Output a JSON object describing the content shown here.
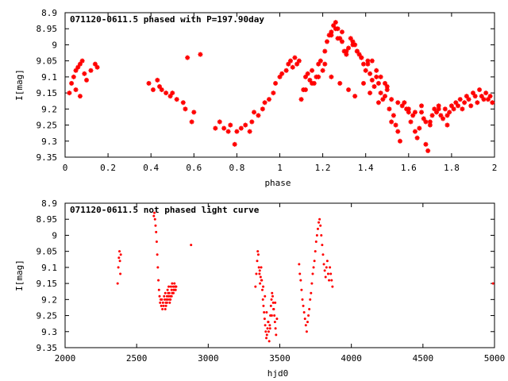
{
  "chart_data": [
    {
      "type": "scatter",
      "title": "071120-0611.5 phased with P=197.90day",
      "xlabel": "phase",
      "ylabel": "I[mag]",
      "xlim": [
        0,
        2
      ],
      "ylim": [
        9.35,
        8.9
      ],
      "y_inverted": true,
      "x_ticks": [
        "0",
        "0.2",
        "0.4",
        "0.6",
        "0.8",
        "1",
        "1.2",
        "1.4",
        "1.6",
        "1.8",
        "2"
      ],
      "y_ticks": [
        "8.9",
        "8.95",
        "9",
        "9.05",
        "9.1",
        "9.15",
        "9.2",
        "9.25",
        "9.3",
        "9.35"
      ],
      "grid": false,
      "marker_color": "#ff0000",
      "series": [
        {
          "x": [
            0.02,
            0.03,
            0.04,
            0.05,
            0.05,
            0.06,
            0.07,
            0.07,
            0.08,
            0.09,
            0.1,
            0.12,
            0.14,
            0.15,
            0.39,
            0.41,
            0.43,
            0.44,
            0.45,
            0.47,
            0.49,
            0.5,
            0.52,
            0.55,
            0.56,
            0.57,
            0.59,
            0.6,
            0.63,
            0.7,
            0.72,
            0.74,
            0.76,
            0.77,
            0.79,
            0.8,
            0.82,
            0.84,
            0.86,
            0.87,
            0.88,
            0.9,
            0.92,
            0.93,
            0.95,
            0.97,
            0.98,
            1.0,
            1.01,
            1.03,
            1.04,
            1.05,
            1.06,
            1.07,
            1.08,
            1.09,
            1.1,
            1.11,
            1.12,
            1.13,
            1.14,
            1.15,
            1.16,
            1.17,
            1.18,
            1.19,
            1.2,
            1.21,
            1.22,
            1.23,
            1.24,
            1.25,
            1.26,
            1.27,
            1.28,
            1.29,
            1.3,
            1.31,
            1.32,
            1.33,
            1.34,
            1.35,
            1.36,
            1.37,
            1.38,
            1.39,
            1.4,
            1.41,
            1.42,
            1.43,
            1.44,
            1.45,
            1.46,
            1.47,
            1.48,
            1.49,
            1.5,
            1.51,
            1.52,
            1.53,
            1.54,
            1.55,
            1.56,
            1.57,
            1.58,
            1.59,
            1.6,
            1.61,
            1.62,
            1.63,
            1.64,
            1.65,
            1.66,
            1.67,
            1.68,
            1.69,
            1.7,
            1.71,
            1.72,
            1.73,
            1.74,
            1.75,
            1.76,
            1.77,
            1.78,
            1.79,
            1.8,
            1.81,
            1.82,
            1.83,
            1.84,
            1.85,
            1.86,
            1.87,
            1.88,
            1.89,
            1.9,
            1.91,
            1.92,
            1.93,
            1.94,
            1.95,
            1.96,
            1.97,
            1.98,
            1.99,
            1.24,
            1.26,
            1.27,
            1.29,
            1.31,
            1.34,
            1.36,
            1.38,
            1.41,
            1.43,
            1.45,
            1.47,
            1.49,
            1.52,
            1.12,
            1.15,
            1.18,
            1.21,
            1.24,
            1.28,
            1.32,
            1.35,
            1.39,
            1.42,
            1.46,
            1.5,
            1.55,
            1.6,
            1.63,
            1.66,
            1.68,
            1.7,
            1.74,
            1.78
          ],
          "y": [
            9.15,
            9.12,
            9.1,
            9.08,
            9.14,
            9.07,
            9.06,
            9.16,
            9.05,
            9.09,
            9.11,
            9.08,
            9.06,
            9.07,
            9.12,
            9.14,
            9.11,
            9.13,
            9.14,
            9.15,
            9.16,
            9.15,
            9.17,
            9.18,
            9.2,
            9.04,
            9.24,
            9.21,
            9.03,
            9.26,
            9.24,
            9.26,
            9.27,
            9.25,
            9.31,
            9.27,
            9.26,
            9.25,
            9.27,
            9.24,
            9.21,
            9.22,
            9.2,
            9.18,
            9.17,
            9.15,
            9.12,
            9.1,
            9.09,
            9.08,
            9.06,
            9.05,
            9.07,
            9.04,
            9.06,
            9.05,
            9.17,
            9.14,
            9.1,
            9.09,
            9.11,
            9.08,
            9.12,
            9.1,
            9.06,
            9.05,
            9.08,
            9.02,
            8.99,
            8.97,
            8.96,
            8.94,
            8.93,
            8.95,
            8.98,
            8.99,
            9.02,
            9.03,
            9.01,
            8.98,
            8.99,
            9.0,
            9.02,
            9.03,
            9.04,
            9.06,
            9.08,
            9.05,
            9.09,
            9.11,
            9.13,
            9.1,
            9.12,
            9.15,
            9.17,
            9.16,
            9.14,
            9.2,
            9.24,
            9.22,
            9.25,
            9.27,
            9.3,
            9.19,
            9.18,
            9.2,
            9.21,
            9.24,
            9.22,
            9.27,
            9.29,
            9.26,
            9.21,
            9.23,
            9.31,
            9.33,
            9.24,
            9.22,
            9.2,
            9.21,
            9.19,
            9.22,
            9.23,
            9.2,
            9.25,
            9.21,
            9.19,
            9.2,
            9.18,
            9.19,
            9.17,
            9.2,
            9.18,
            9.16,
            9.17,
            9.19,
            9.15,
            9.16,
            9.18,
            9.14,
            9.16,
            9.17,
            9.15,
            9.17,
            9.16,
            9.18,
            8.97,
            8.95,
            8.98,
            8.96,
            9.02,
            9.0,
            9.02,
            9.04,
            9.06,
            9.05,
            9.08,
            9.1,
            9.12,
            9.17,
            9.14,
            9.12,
            9.1,
            9.06,
            9.1,
            9.12,
            9.14,
            9.16,
            9.12,
            9.15,
            9.18,
            9.13,
            9.18,
            9.2,
            9.21,
            9.19,
            9.24,
            9.25,
            9.2,
            9.22
          ]
        }
      ]
    },
    {
      "type": "scatter",
      "title": "071120-0611.5 not phased light curve",
      "xlabel": "hjd0",
      "ylabel": "I[mag]",
      "xlim": [
        2000,
        5000
      ],
      "ylim": [
        9.35,
        8.9
      ],
      "y_inverted": true,
      "x_ticks": [
        "2000",
        "2500",
        "3000",
        "3500",
        "4000",
        "4500",
        "5000"
      ],
      "y_ticks": [
        "8.9",
        "8.95",
        "9",
        "9.05",
        "9.1",
        "9.15",
        "9.2",
        "9.25",
        "9.3",
        "9.35"
      ],
      "grid": false,
      "marker_color": "#ff0000",
      "series": [
        {
          "x": [
            2367,
            2372,
            2376,
            2380,
            2383,
            2386,
            2389,
            2620,
            2624,
            2628,
            2632,
            2636,
            2640,
            2644,
            2648,
            2652,
            2656,
            2660,
            2664,
            2668,
            2672,
            2676,
            2680,
            2684,
            2688,
            2692,
            2696,
            2700,
            2704,
            2708,
            2712,
            2716,
            2720,
            2724,
            2728,
            2732,
            2736,
            2740,
            2744,
            2748,
            2752,
            2756,
            2760,
            2764,
            2768,
            2772,
            2776,
            2700,
            2712,
            2724,
            2736,
            2748,
            2760,
            2772,
            2705,
            2718,
            2731,
            2744,
            2757,
            2770,
            2880,
            3330,
            3336,
            3342,
            3346,
            3350,
            3354,
            3358,
            3362,
            3366,
            3370,
            3374,
            3378,
            3382,
            3386,
            3390,
            3394,
            3398,
            3402,
            3406,
            3410,
            3414,
            3418,
            3422,
            3426,
            3430,
            3434,
            3438,
            3442,
            3446,
            3450,
            3454,
            3458,
            3462,
            3466,
            3470,
            3474,
            3480,
            3360,
            3372,
            3384,
            3396,
            3408,
            3420,
            3432,
            3444,
            3456,
            3468,
            3635,
            3640,
            3646,
            3652,
            3658,
            3664,
            3670,
            3676,
            3682,
            3688,
            3694,
            3700,
            3706,
            3712,
            3718,
            3724,
            3730,
            3736,
            3742,
            3748,
            3754,
            3760,
            3766,
            3772,
            3778,
            3784,
            3790,
            3796,
            3802,
            3808,
            3814,
            3820,
            3826,
            3832,
            3838,
            3844,
            3850,
            3856,
            3862,
            3868,
            4990
          ],
          "y": [
            9.15,
            9.1,
            9.07,
            9.05,
            9.08,
            9.12,
            9.06,
            8.94,
            8.93,
            8.95,
            8.97,
            8.99,
            9.02,
            9.06,
            9.1,
            9.14,
            9.17,
            9.19,
            9.21,
            9.2,
            9.22,
            9.2,
            9.23,
            9.21,
            9.22,
            9.19,
            9.2,
            9.18,
            9.21,
            9.2,
            9.19,
            9.17,
            9.18,
            9.16,
            9.18,
            9.2,
            9.19,
            9.16,
            9.17,
            9.15,
            9.18,
            9.16,
            9.17,
            9.15,
            9.16,
            9.17,
            9.16,
            9.23,
            9.21,
            9.19,
            9.2,
            9.18,
            9.17,
            9.16,
            9.22,
            9.2,
            9.21,
            9.19,
            9.18,
            9.17,
            9.03,
            9.16,
            9.12,
            9.08,
            9.05,
            9.06,
            9.1,
            9.12,
            9.15,
            9.13,
            9.1,
            9.14,
            9.17,
            9.2,
            9.22,
            9.24,
            9.26,
            9.28,
            9.3,
            9.32,
            9.31,
            9.29,
            9.27,
            9.3,
            9.33,
            9.28,
            9.25,
            9.22,
            9.2,
            9.18,
            9.19,
            9.21,
            9.23,
            9.25,
            9.27,
            9.29,
            9.31,
            9.26,
            9.11,
            9.14,
            9.16,
            9.19,
            9.24,
            9.27,
            9.29,
            9.25,
            9.23,
            9.21,
            9.09,
            9.12,
            9.14,
            9.17,
            9.2,
            9.22,
            9.24,
            9.26,
            9.28,
            9.3,
            9.27,
            9.25,
            9.23,
            9.2,
            9.18,
            9.15,
            9.12,
            9.1,
            9.08,
            9.05,
            9.02,
            9.0,
            8.98,
            8.96,
            8.95,
            8.97,
            9.0,
            9.03,
            9.06,
            9.09,
            9.11,
            9.13,
            9.1,
            9.08,
            9.12,
            9.14,
            9.1,
            9.12,
            9.14,
            9.16,
            9.15
          ]
        }
      ]
    }
  ]
}
